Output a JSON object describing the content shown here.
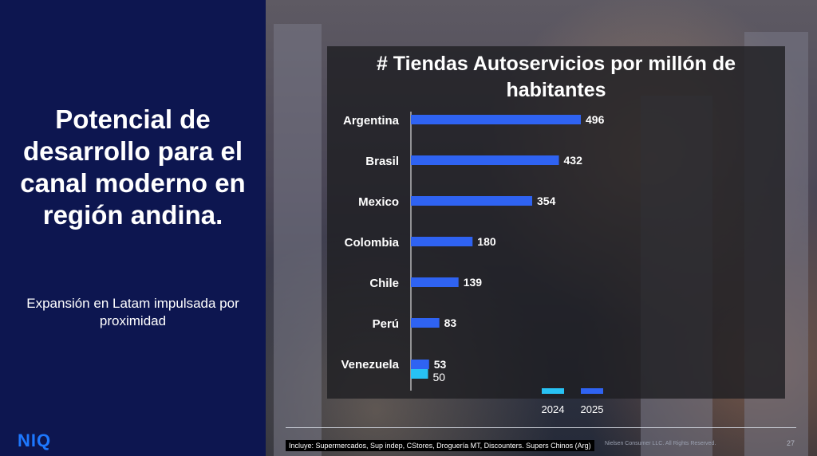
{
  "slide": {
    "title": "Potencial de desarrollo para el canal moderno en región andina.",
    "subtitle": "Expansión en Latam impulsada por proximidad",
    "logo": "NIQ",
    "footnote": "Incluye: Supermercados, Sup indep, CStores, Droguería MT, Discounters. Supers Chinos (Arg)",
    "copyright": "Nielsen Consumer LLC. All Rights Reserved.",
    "page_number": "27"
  },
  "colors": {
    "series_2024": "#28c2f4",
    "series_2025": "#2f63f2",
    "left_bg": "#0d1650",
    "logo": "#1d78ff"
  },
  "chart_data": {
    "type": "bar",
    "orientation": "horizontal",
    "title": "# Tiendas Autoservicios por millón de habitantes",
    "categories": [
      "Argentina",
      "Brasil",
      "Mexico",
      "Colombia",
      "Chile",
      "Perú",
      "Venezuela"
    ],
    "series": [
      {
        "name": "2024",
        "values": [
          null,
          null,
          null,
          null,
          null,
          null,
          50
        ]
      },
      {
        "name": "2025",
        "values": [
          496,
          432,
          354,
          180,
          139,
          83,
          53
        ]
      }
    ],
    "xlim": [
      0,
      496
    ],
    "legend": "bottom-right",
    "grid": false
  }
}
